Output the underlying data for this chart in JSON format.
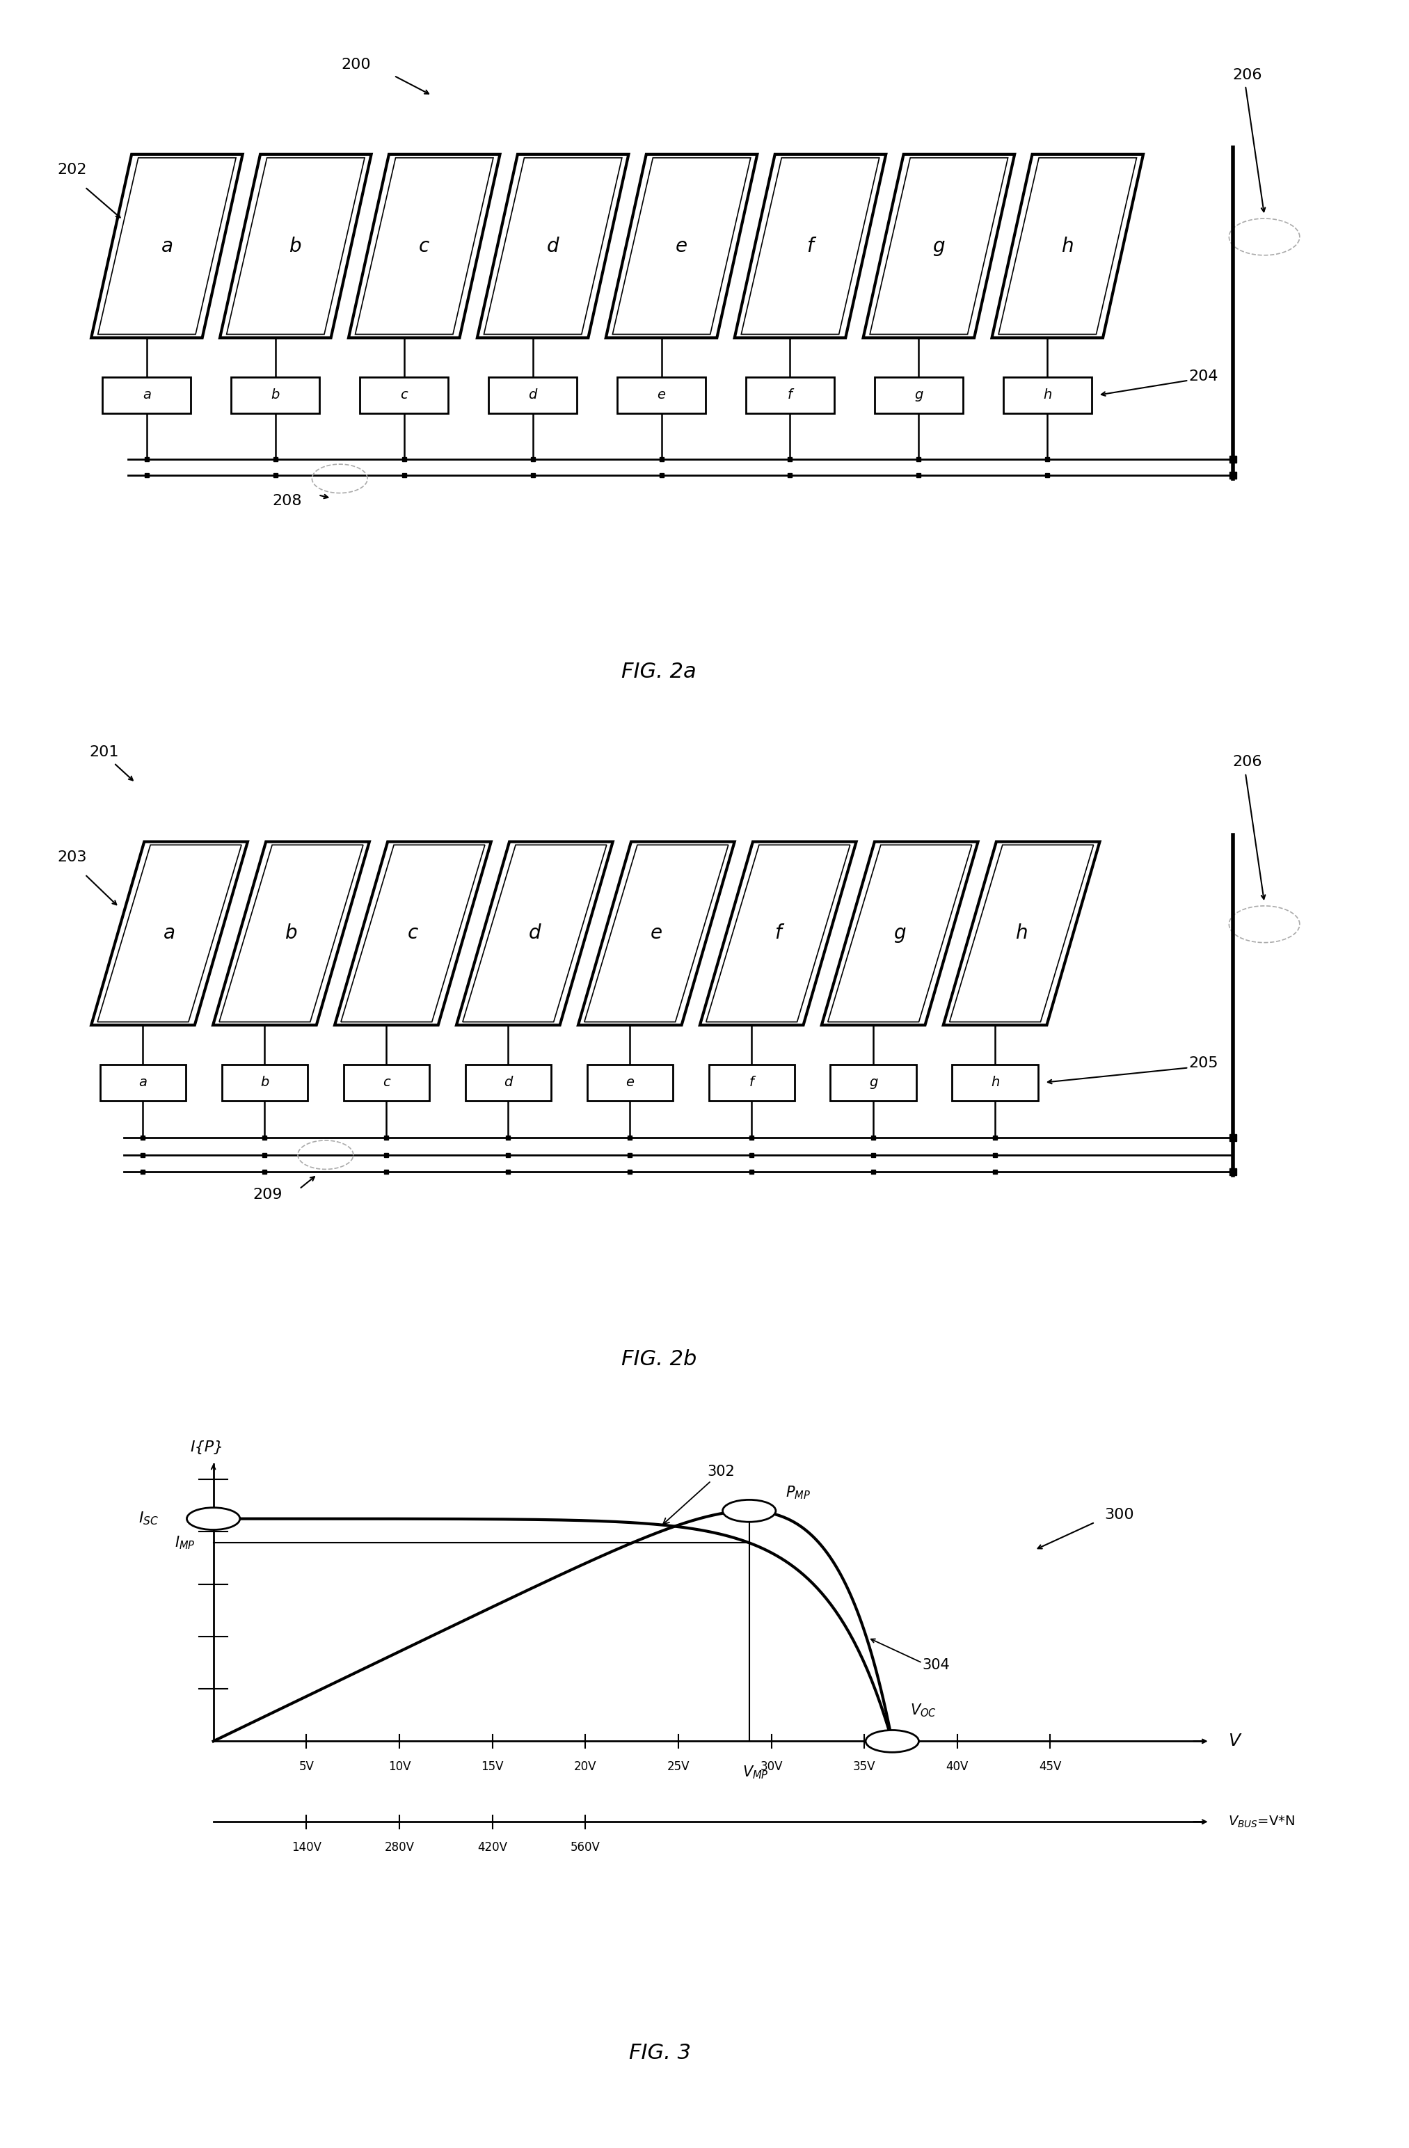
{
  "fig_width": 20.25,
  "fig_height": 30.87,
  "bg_color": "#ffffff",
  "panel_labels": [
    "a",
    "b",
    "c",
    "d",
    "e",
    "f",
    "g",
    "h"
  ],
  "fig3": {
    "x_tick_labels": [
      "5V",
      "10V",
      "15V",
      "20V",
      "25V",
      "30V",
      "35V",
      "40V",
      "45V"
    ],
    "x_ticks_v": [
      5,
      10,
      15,
      20,
      25,
      30,
      35,
      40,
      45
    ],
    "vbus_tick_labels": [
      "140V",
      "280V",
      "420V",
      "560V"
    ],
    "vbus_ticks": [
      140,
      280,
      420,
      560
    ],
    "isc": 8.5,
    "imp": 7.2,
    "vmp": 30.0,
    "voc": 36.5,
    "vmax": 50.0,
    "imax": 10.0
  }
}
